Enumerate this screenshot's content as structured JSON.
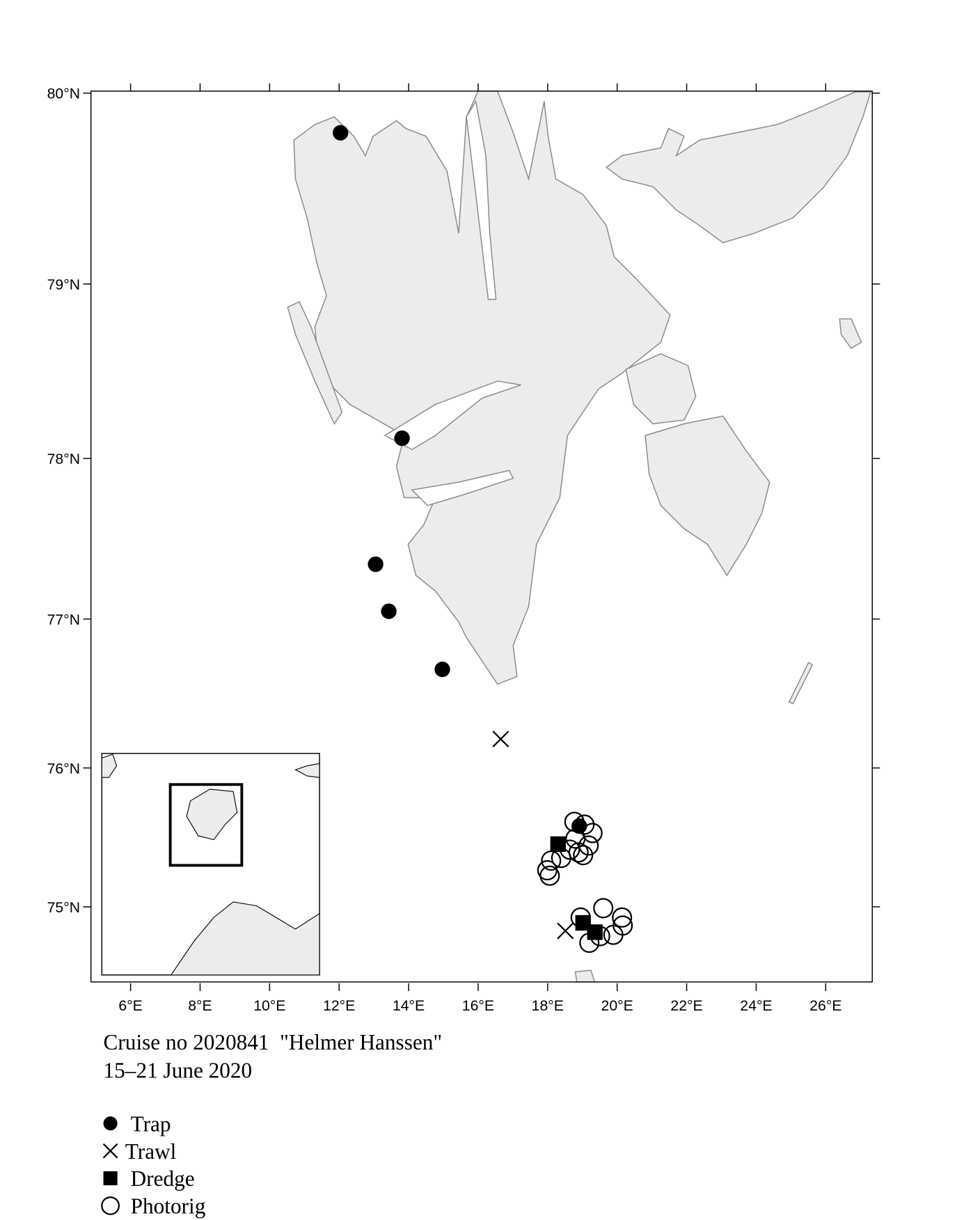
{
  "chart_data": {
    "type": "scatter",
    "projection": "mercator",
    "title": "Cruise no 2020841  \"Helmer Hanssen\"",
    "subtitle": "15–21 June 2020",
    "xlim": [
      4.86,
      27.34
    ],
    "ylim": [
      74.42,
      80.01
    ],
    "xticks": [
      {
        "value": 6,
        "label": "6°E"
      },
      {
        "value": 8,
        "label": "8°E"
      },
      {
        "value": 10,
        "label": "10°E"
      },
      {
        "value": 12,
        "label": "12°E"
      },
      {
        "value": 14,
        "label": "14°E"
      },
      {
        "value": 16,
        "label": "16°E"
      },
      {
        "value": 18,
        "label": "18°E"
      },
      {
        "value": 20,
        "label": "20°E"
      },
      {
        "value": 22,
        "label": "22°E"
      },
      {
        "value": 24,
        "label": "24°E"
      },
      {
        "value": 26,
        "label": "26°E"
      }
    ],
    "yticks": [
      {
        "value": 75,
        "label": "75°N"
      },
      {
        "value": 76,
        "label": "76°N"
      },
      {
        "value": 77,
        "label": "77°N"
      },
      {
        "value": 78,
        "label": "78°N"
      },
      {
        "value": 79,
        "label": "79°N"
      },
      {
        "value": 80,
        "label": "80°N"
      }
    ],
    "series": [
      {
        "name": "Trap",
        "marker": "filled-circle",
        "color": "#000000",
        "x": [
          12.04,
          13.81,
          13.05,
          13.43,
          14.97,
          18.91
        ],
        "values": [
          79.8,
          78.12,
          77.35,
          77.05,
          76.67,
          75.59
        ]
      },
      {
        "name": "Trawl",
        "marker": "cross",
        "color": "#000000",
        "x": [
          16.65,
          18.51
        ],
        "values": [
          76.2,
          74.82
        ]
      },
      {
        "name": "Dredge",
        "marker": "filled-square",
        "color": "#000000",
        "x": [
          18.3,
          19.02,
          19.36
        ],
        "values": [
          75.46,
          74.88,
          74.81
        ]
      },
      {
        "name": "Photorig",
        "marker": "open-circle",
        "color": "#000000",
        "x": [
          18.77,
          19.06,
          19.29,
          19.18,
          18.89,
          18.64,
          18.39,
          18.1,
          17.99,
          18.06,
          18.8,
          19.02,
          19.6,
          20.14,
          20.16,
          19.89,
          19.51,
          19.2,
          18.95
        ],
        "values": [
          75.62,
          75.6,
          75.54,
          75.45,
          75.4,
          75.42,
          75.36,
          75.34,
          75.27,
          75.23,
          75.5,
          75.38,
          74.99,
          74.92,
          74.86,
          74.79,
          74.78,
          74.73,
          74.92
        ]
      }
    ]
  }
}
